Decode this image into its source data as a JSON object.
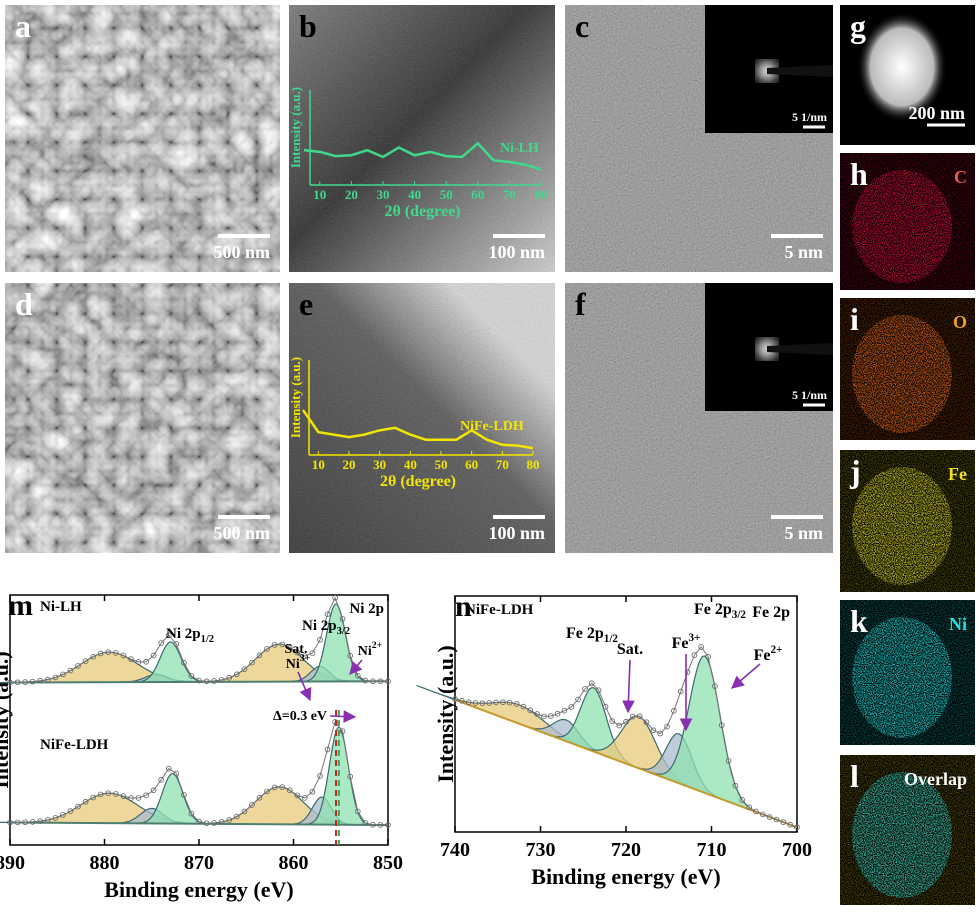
{
  "panels": [
    {
      "label": "a",
      "scale": "500 nm"
    },
    {
      "label": "b",
      "scale": "100 nm"
    },
    {
      "label": "c",
      "scale": "5 nm",
      "inset_scale": "5 1/nm"
    },
    {
      "label": "d",
      "scale": "500 nm"
    },
    {
      "label": "e",
      "scale": "100 nm"
    },
    {
      "label": "f",
      "scale": "5 nm",
      "inset_scale": "5 1/nm"
    },
    {
      "label": "g",
      "scale": "200 nm"
    },
    {
      "label": "h",
      "element": "C"
    },
    {
      "label": "i",
      "element": "O"
    },
    {
      "label": "j",
      "element": "Fe"
    },
    {
      "label": "k",
      "element": "Ni"
    },
    {
      "label": "l",
      "element": "Overlap"
    }
  ],
  "chart_data": [
    {
      "type": "line",
      "series": [
        {
          "name": "Ni-LH",
          "color": "#3fd98c",
          "values": [
            41,
            39,
            34,
            35,
            41,
            33,
            44,
            35,
            39,
            34,
            33,
            49,
            29,
            27,
            24,
            18
          ]
        }
      ],
      "x": [
        5,
        10,
        15,
        20,
        25,
        30,
        35,
        40,
        45,
        50,
        55,
        60,
        65,
        70,
        75,
        80
      ],
      "xlim": [
        5,
        80
      ],
      "ylim": [
        0,
        100
      ],
      "xticks": [
        10,
        20,
        30,
        40,
        50,
        60,
        70,
        80
      ],
      "x_label": "2θ (degree)",
      "y_label": "Intensity (a.u.)"
    },
    {
      "type": "line",
      "series": [
        {
          "name": "NiFe-LDH",
          "color": "#f2e600",
          "values": [
            53,
            27,
            24,
            21,
            24,
            29,
            32,
            24,
            18,
            18,
            18,
            29,
            18,
            12,
            11,
            8
          ]
        }
      ],
      "x": [
        5,
        10,
        15,
        20,
        25,
        30,
        35,
        40,
        45,
        50,
        55,
        60,
        65,
        70,
        75,
        80
      ],
      "xlim": [
        5,
        80
      ],
      "ylim": [
        0,
        100
      ],
      "xticks": [
        10,
        20,
        30,
        40,
        50,
        60,
        70,
        80
      ],
      "x_label": "2θ (degree)",
      "y_label": "Intensity (a.u.)"
    },
    {
      "type": "xps",
      "panel": "m",
      "x_label": "Binding energy (eV)",
      "y_label": "Intensity (a.u.)",
      "xlim": [
        890,
        850
      ],
      "ylim": [
        0,
        100
      ],
      "xticks": [
        890,
        880,
        870,
        860,
        850
      ],
      "spectra": [
        {
          "name": "Ni-LH",
          "baseline": [
            65,
            65.5
          ],
          "peaks": [
            {
              "center": 879.5,
              "height": 12,
              "width": 3,
              "color": "#e8c97a"
            },
            {
              "center": 874.5,
              "height": 3,
              "width": 1.2,
              "color": "#a9bccf"
            },
            {
              "center": 873,
              "height": 16,
              "width": 1.1,
              "color": "#8fe0b0"
            },
            {
              "center": 861.5,
              "height": 15,
              "width": 2.5,
              "color": "#e8c97a"
            },
            {
              "center": 857.2,
              "height": 6,
              "width": 1,
              "color": "#a9bccf"
            },
            {
              "center": 855.5,
              "height": 31,
              "width": 1,
              "color": "#8fe0b0"
            }
          ]
        },
        {
          "name": "NiFe-LDH",
          "baseline": [
            9,
            8
          ],
          "peaks": [
            {
              "center": 879.5,
              "height": 12,
              "width": 3,
              "color": "#e8c97a"
            },
            {
              "center": 875,
              "height": 6,
              "width": 1.2,
              "color": "#a9bccf"
            },
            {
              "center": 872.8,
              "height": 20,
              "width": 1.1,
              "color": "#8fe0b0"
            },
            {
              "center": 861.5,
              "height": 15,
              "width": 2.5,
              "color": "#e8c97a"
            },
            {
              "center": 857,
              "height": 11,
              "width": 1,
              "color": "#a9bccf"
            },
            {
              "center": 855.2,
              "height": 39,
              "width": 1,
              "color": "#8fe0b0"
            }
          ]
        }
      ],
      "ref_lines": [
        {
          "x": 855.5,
          "color": "#d62020"
        },
        {
          "x": 855.2,
          "color": "#2aa860"
        }
      ],
      "annotations": [
        {
          "text": "Ni 2p"
        },
        {
          "text": "Ni 2p",
          "sub": "3/2"
        },
        {
          "text": "Ni 2p",
          "sub": "1/2"
        },
        {
          "text": "Sat."
        },
        {
          "text": "Ni",
          "sup": "3+"
        },
        {
          "text": "Ni",
          "sup": "2+"
        },
        {
          "text": "Δ=0.3 eV"
        }
      ]
    },
    {
      "type": "xps",
      "panel": "n",
      "x_label": "Binding energy (eV)",
      "y_label": "Intensity (a.u.)",
      "xlim": [
        740,
        700
      ],
      "ylim": [
        0,
        100
      ],
      "xticks": [
        740,
        730,
        720,
        710,
        700
      ],
      "spectra": [
        {
          "name": "NiFe-LDH",
          "baseline": [
            56,
            2
          ],
          "peaks": [
            {
              "center": 732.5,
              "height": 8,
              "width": 3,
              "color": "#e8c97a"
            },
            {
              "center": 727,
              "height": 9,
              "width": 1.5,
              "color": "#a9bccf"
            },
            {
              "center": 723.8,
              "height": 27,
              "width": 1.5,
              "color": "#8fe0b0"
            },
            {
              "center": 718.5,
              "height": 22,
              "width": 2,
              "color": "#e8c97a"
            },
            {
              "center": 713.8,
              "height": 21,
              "width": 1.5,
              "color": "#a9bccf"
            },
            {
              "center": 710.8,
              "height": 58,
              "width": 1.8,
              "color": "#8fe0b0"
            }
          ]
        }
      ],
      "annotations": [
        {
          "text": "Fe 2p"
        },
        {
          "text": "Fe 2p",
          "sub": "3/2"
        },
        {
          "text": "Fe 2p",
          "sub": "1/2"
        },
        {
          "text": "Sat."
        },
        {
          "text": "Fe",
          "sup": "3+"
        },
        {
          "text": "Fe",
          "sup": "2+"
        }
      ]
    }
  ]
}
